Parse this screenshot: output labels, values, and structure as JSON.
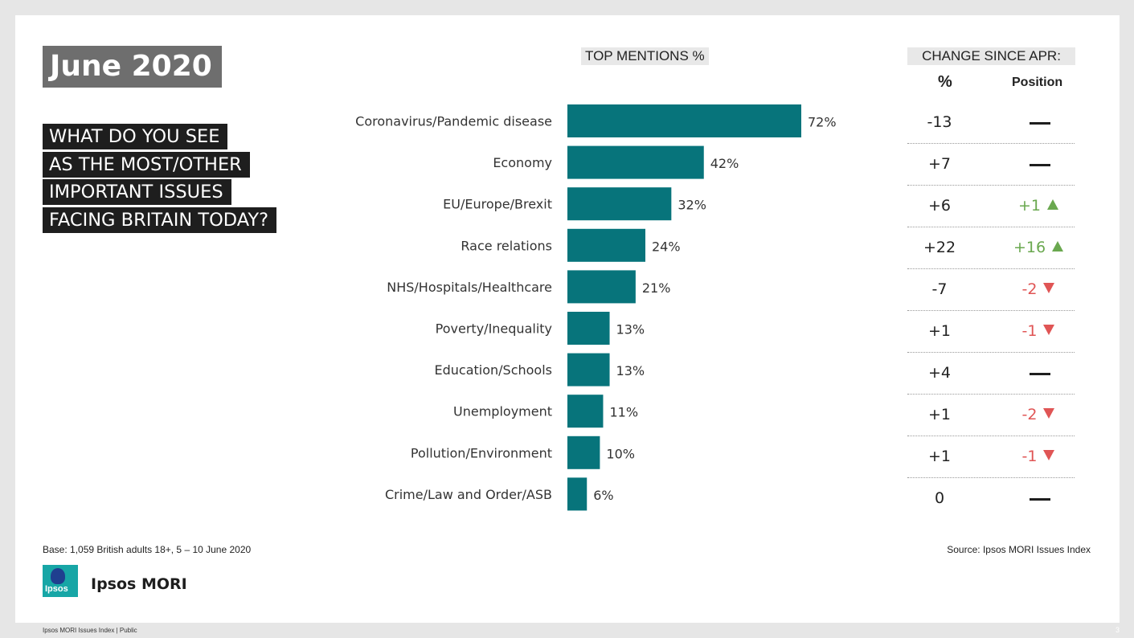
{
  "title": "June 2020",
  "question_lines": [
    "WHAT DO YOU SEE",
    "AS THE MOST/OTHER",
    "IMPORTANT ISSUES",
    "FACING BRITAIN TODAY?"
  ],
  "chart_header": "TOP MENTIONS %",
  "change_header": "CHANGE SINCE APR:",
  "change_col_pct": "%",
  "change_col_position": "Position",
  "chart_data": {
    "type": "bar",
    "orientation": "horizontal",
    "categories": [
      "Coronavirus/Pandemic disease",
      "Economy",
      "EU/Europe/Brexit",
      "Race relations",
      "NHS/Hospitals/Healthcare",
      "Poverty/Inequality",
      "Education/Schools",
      "Unemployment",
      "Pollution/Environment",
      "Crime/Law and Order/ASB"
    ],
    "values": [
      72,
      42,
      32,
      24,
      21,
      13,
      13,
      11,
      10,
      6
    ],
    "value_labels": [
      "72%",
      "42%",
      "32%",
      "24%",
      "21%",
      "13%",
      "13%",
      "11%",
      "10%",
      "6%"
    ],
    "xlim": [
      0,
      100
    ],
    "bar_color": "#07747b",
    "grid": false
  },
  "changes": [
    {
      "pct": "-13",
      "position": "",
      "direction": "none"
    },
    {
      "pct": "+7",
      "position": "",
      "direction": "none"
    },
    {
      "pct": "+6",
      "position": "+1",
      "direction": "up"
    },
    {
      "pct": "+22",
      "position": "+16",
      "direction": "up"
    },
    {
      "pct": "-7",
      "position": "-2",
      "direction": "down"
    },
    {
      "pct": "+1",
      "position": "-1",
      "direction": "down"
    },
    {
      "pct": "+4",
      "position": "",
      "direction": "none"
    },
    {
      "pct": "+1",
      "position": "-2",
      "direction": "down"
    },
    {
      "pct": "+1",
      "position": "-1",
      "direction": "down"
    },
    {
      "pct": "0",
      "position": "",
      "direction": "none"
    }
  ],
  "colors": {
    "up": "#6aa84f",
    "down": "#e05555",
    "bar": "#07747b"
  },
  "base_note": "Base: 1,059 British adults 18+, 5 – 10 June 2020",
  "source_note": "Source: Ipsos MORI Issues Index",
  "logo_text": "Ipsos",
  "brand": "Ipsos MORI",
  "footer": "Ipsos MORI Issues Index | Public",
  "page_number": "3"
}
